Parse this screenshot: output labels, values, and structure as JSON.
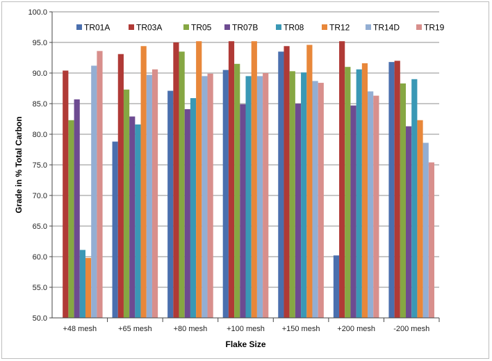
{
  "chart_data": {
    "type": "bar",
    "title": "",
    "xlabel": "Flake Size",
    "ylabel": "Grade in % Total Carbon",
    "ylim": [
      50,
      100
    ],
    "ytick_step": 5,
    "ytick_labels": [
      "50.0",
      "55.0",
      "60.0",
      "65.0",
      "70.0",
      "75.0",
      "80.0",
      "85.0",
      "90.0",
      "95.0",
      "100.0"
    ],
    "grid": true,
    "legend_position": "top",
    "categories": [
      "+48 mesh",
      "+65 mesh",
      "+80 mesh",
      "+100 mesh",
      "+150 mesh",
      "+200 mesh",
      "-200 mesh"
    ],
    "series": [
      {
        "name": "TR01A",
        "color": "#4a6fae",
        "values": [
          null,
          78.8,
          87.1,
          90.5,
          93.5,
          60.2,
          91.8
        ]
      },
      {
        "name": "TR03A",
        "color": "#b03a36",
        "values": [
          90.4,
          93.1,
          95.0,
          95.2,
          94.4,
          95.2,
          92.0
        ]
      },
      {
        "name": "TR05",
        "color": "#86a743",
        "values": [
          82.3,
          87.3,
          93.5,
          91.5,
          90.3,
          91.0,
          88.3
        ]
      },
      {
        "name": "TR07B",
        "color": "#6d4b91",
        "values": [
          85.7,
          82.9,
          84.1,
          84.9,
          85.0,
          84.7,
          81.3
        ]
      },
      {
        "name": "TR08",
        "color": "#3a98b5",
        "values": [
          61.1,
          81.6,
          85.9,
          89.5,
          90.1,
          90.6,
          89.0
        ]
      },
      {
        "name": "TR12",
        "color": "#e8873a",
        "values": [
          59.8,
          94.4,
          95.2,
          95.2,
          94.6,
          91.6,
          82.3
        ]
      },
      {
        "name": "TR14D",
        "color": "#93aed3",
        "values": [
          91.2,
          89.7,
          89.5,
          89.5,
          88.7,
          87.0,
          78.6
        ]
      },
      {
        "name": "TR19",
        "color": "#d88f8c",
        "values": [
          93.6,
          90.6,
          89.9,
          90.0,
          88.4,
          86.3,
          75.4
        ]
      }
    ]
  }
}
